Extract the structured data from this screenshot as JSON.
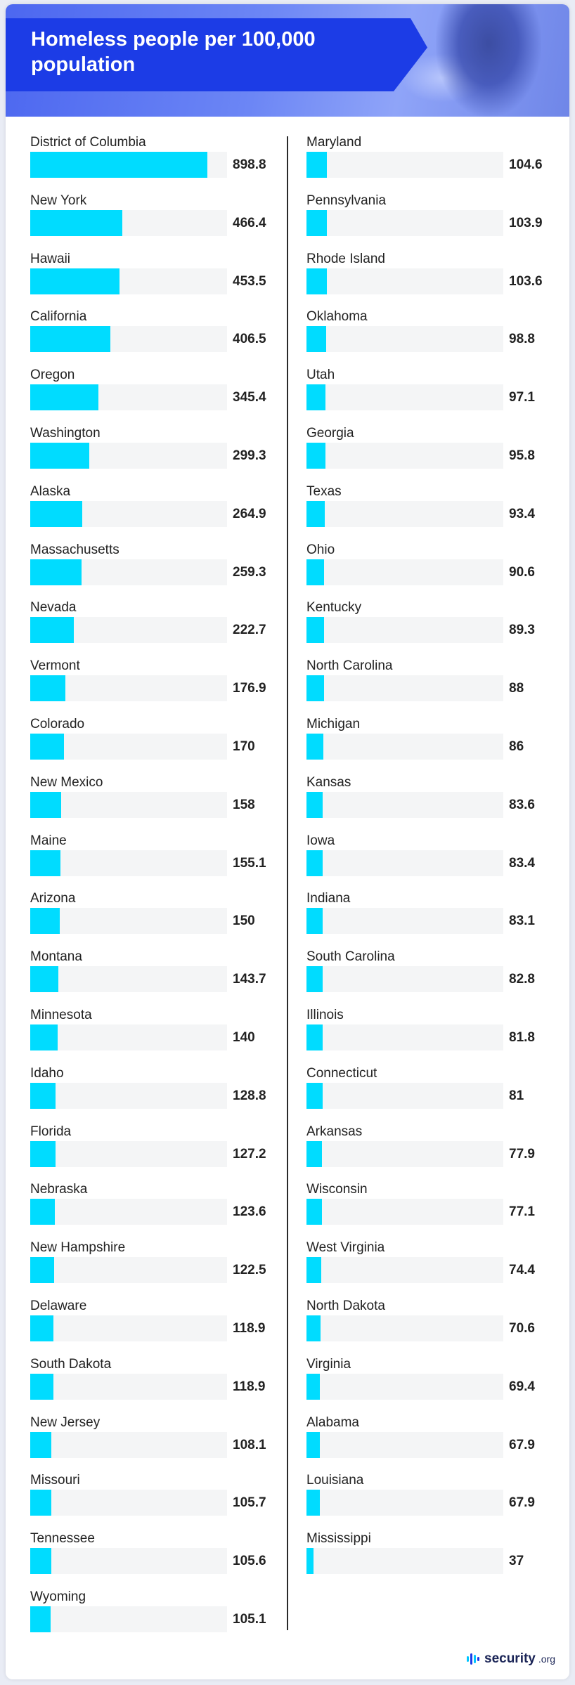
{
  "header": {
    "title": "Homeless people per 100,000 population"
  },
  "footer": {
    "brand": "security",
    "tld": ".org"
  },
  "colors": {
    "bar": "#00dcff",
    "track": "#f4f5f6",
    "banner": "#1c3ce6"
  },
  "chart_data": {
    "type": "bar",
    "orientation": "horizontal",
    "title": "Homeless people per 100,000 population",
    "xlim": [
      0,
      898.8
    ],
    "columns": [
      {
        "categories": [
          "District of Columbia",
          "New York",
          "Hawaii",
          "California",
          "Oregon",
          "Washington",
          "Alaska",
          "Massachusetts",
          "Nevada",
          "Vermont",
          "Colorado",
          "New Mexico",
          "Maine",
          "Arizona",
          "Montana",
          "Minnesota",
          "Idaho",
          "Florida",
          "Nebraska",
          "New Hampshire",
          "Delaware",
          "South Dakota",
          "New Jersey",
          "Missouri",
          "Tennessee",
          "Wyoming"
        ],
        "values": [
          898.8,
          466.4,
          453.5,
          406.5,
          345.4,
          299.3,
          264.9,
          259.3,
          222.7,
          176.9,
          170,
          158,
          155.1,
          150,
          143.7,
          140,
          128.8,
          127.2,
          123.6,
          122.5,
          118.9,
          118.9,
          108.1,
          105.7,
          105.6,
          105.1
        ],
        "labels": [
          "898.8",
          "466.4",
          "453.5",
          "406.5",
          "345.4",
          "299.3",
          "264.9",
          "259.3",
          "222.7",
          "176.9",
          "170",
          "158",
          "155.1",
          "150",
          "143.7",
          "140",
          "128.8",
          "127.2",
          "123.6",
          "122.5",
          "118.9",
          "118.9",
          "108.1",
          "105.7",
          "105.6",
          "105.1"
        ]
      },
      {
        "categories": [
          "Maryland",
          "Pennsylvania",
          "Rhode Island",
          "Oklahoma",
          "Utah",
          "Georgia",
          "Texas",
          "Ohio",
          "Kentucky",
          "North Carolina",
          "Michigan",
          "Kansas",
          "Iowa",
          "Indiana",
          "South Carolina",
          "Illinois",
          "Connecticut",
          "Arkansas",
          "Wisconsin",
          "West Virginia",
          "North Dakota",
          "Virginia",
          "Alabama",
          "Louisiana",
          "Mississippi"
        ],
        "values": [
          104.6,
          103.9,
          103.6,
          98.8,
          97.1,
          95.8,
          93.4,
          90.6,
          89.3,
          88,
          86,
          83.6,
          83.4,
          83.1,
          82.8,
          81.8,
          81,
          77.9,
          77.1,
          74.4,
          70.6,
          69.4,
          67.9,
          67.9,
          37
        ],
        "labels": [
          "104.6",
          "103.9",
          "103.6",
          "98.8",
          "97.1",
          "95.8",
          "93.4",
          "90.6",
          "89.3",
          "88",
          "86",
          "83.6",
          "83.4",
          "83.1",
          "82.8",
          "81.8",
          "81",
          "77.9",
          "77.1",
          "74.4",
          "70.6",
          "69.4",
          "67.9",
          "67.9",
          "37"
        ]
      }
    ]
  }
}
